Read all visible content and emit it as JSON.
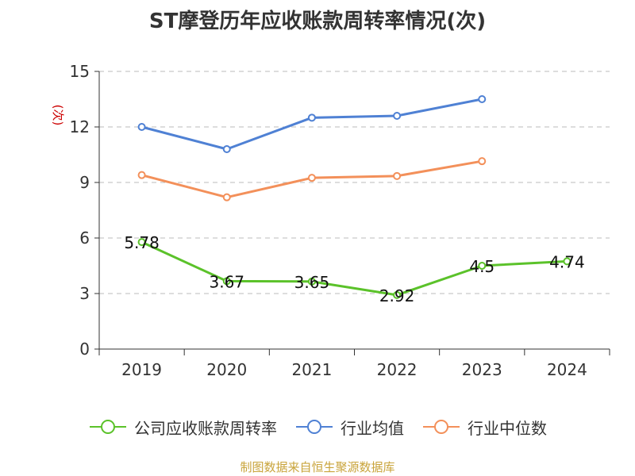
{
  "chart_data": {
    "type": "line",
    "title": "ST摩登历年应收账款周转率情况(次)",
    "ylabel": "(次)",
    "categories": [
      "2019",
      "2020",
      "2021",
      "2022",
      "2023",
      "2024"
    ],
    "ylim": [
      0,
      15
    ],
    "yticks": [
      0,
      3,
      6,
      9,
      12,
      15
    ],
    "grid": true,
    "legend_position": "bottom",
    "series": [
      {
        "name": "公司应收账款周转率",
        "color": "#5bc22a",
        "values": [
          5.78,
          3.67,
          3.65,
          2.92,
          4.5,
          4.74
        ],
        "labels": [
          "5.78",
          "3.67",
          "3.65",
          "2.92",
          "4.5",
          "4.74"
        ]
      },
      {
        "name": "行业均值",
        "color": "#4f81d4",
        "values": [
          12.0,
          10.8,
          12.5,
          12.6,
          13.5,
          null
        ]
      },
      {
        "name": "行业中位数",
        "color": "#f3905a",
        "values": [
          9.4,
          8.2,
          9.25,
          9.35,
          10.15,
          null
        ]
      }
    ]
  },
  "source_note": "制图数据来自恒生聚源数据库"
}
